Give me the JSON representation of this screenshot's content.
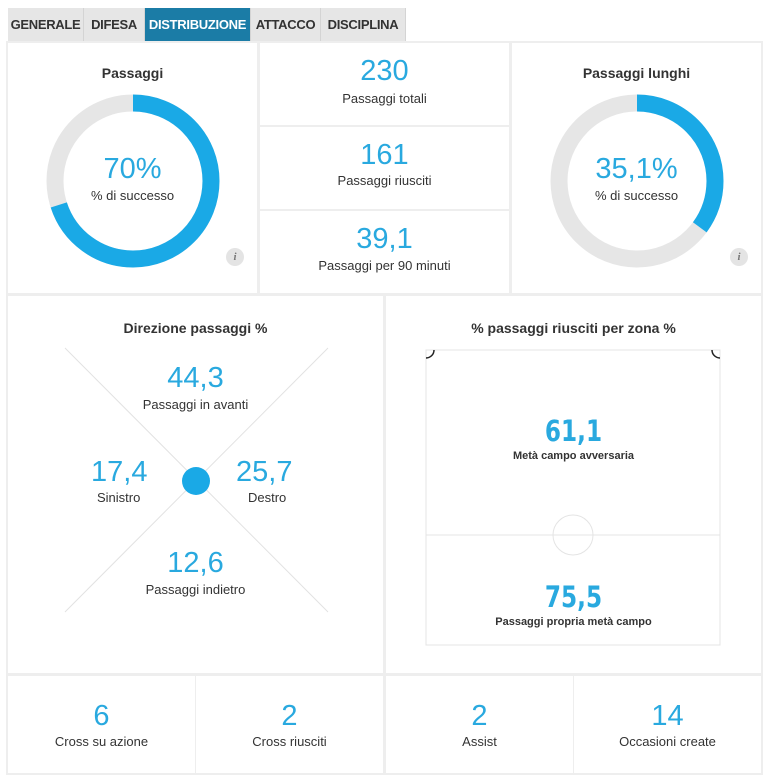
{
  "tabs": [
    "GENERALE",
    "DIFESA",
    "DISTRIBUZIONE",
    "ATTACCO",
    "DISCIPLINA"
  ],
  "active_tab": 2,
  "passes": {
    "title": "Passaggi",
    "value": 70,
    "label": "70%",
    "caption": "% di successo",
    "info": "i"
  },
  "totals": [
    {
      "value": "230",
      "caption": "Passaggi totali"
    },
    {
      "value": "161",
      "caption": "Passaggi riusciti"
    },
    {
      "value": "39,1",
      "caption": "Passaggi per 90 minuti"
    }
  ],
  "long_passes": {
    "title": "Passaggi lunghi",
    "value": 35.1,
    "label": "35,1%",
    "caption": "% di successo",
    "info": "i"
  },
  "direction": {
    "title": "Direzione passaggi %",
    "forward": {
      "value": "44,3",
      "caption": "Passaggi in avanti"
    },
    "left": {
      "value": "17,4",
      "caption": "Sinistro"
    },
    "right": {
      "value": "25,7",
      "caption": "Destro"
    },
    "back": {
      "value": "12,6",
      "caption": "Passaggi indietro"
    }
  },
  "zones": {
    "title": "% passaggi riusciti per zona %",
    "opponent_half": {
      "value": "61,1",
      "caption": "Metà campo avversaria"
    },
    "own_half": {
      "value": "75,5",
      "caption": "Passaggi propria metà campo"
    }
  },
  "bottom": [
    {
      "value": "6",
      "caption": "Cross su azione"
    },
    {
      "value": "2",
      "caption": "Cross riusciti"
    },
    {
      "value": "2",
      "caption": "Assist"
    },
    {
      "value": "14",
      "caption": "Occasioni create"
    }
  ]
}
